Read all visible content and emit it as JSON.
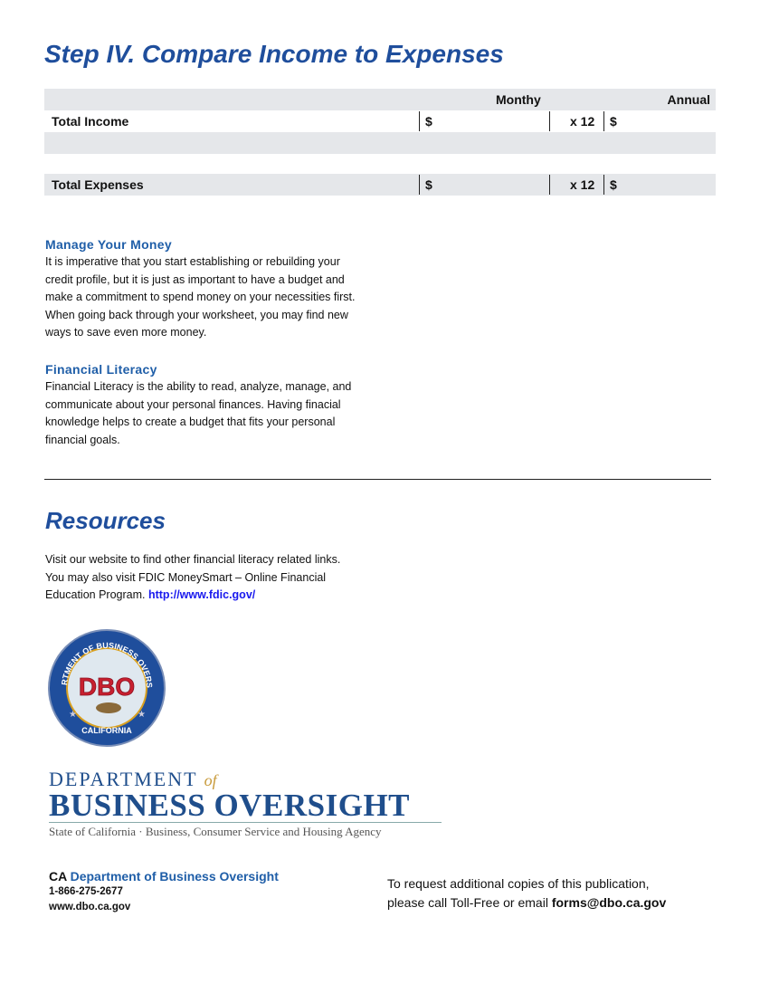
{
  "title": "Step IV. Compare Income to Expenses",
  "table": {
    "col_monthly": "Monthy",
    "col_annual": "Annual",
    "rows": [
      {
        "label": "Total Income",
        "currency": "$",
        "multiplier": "x 12",
        "annual_currency": "$"
      },
      {
        "label": "Total Expenses",
        "currency": "$",
        "multiplier": "x 12",
        "annual_currency": "$"
      }
    ]
  },
  "manage": {
    "heading": "Manage Your Money",
    "body": "It is imperative that you start establishing or rebuilding your credit profile, but it is just as important to have a budget and make a commitment to spend money on your necessities first. When going back through your worksheet, you may find new ways to save even more money."
  },
  "literacy": {
    "heading": "Financial Literacy",
    "body": "Financial Literacy is the ability to read, analyze, manage, and communicate about your personal finances. Having finacial knowledge helps to create a budget that fits your personal financial goals."
  },
  "resources": {
    "heading": "Resources",
    "body": "Visit our website to find other financial literacy related links. You may also visit FDIC MoneySmart – Online Financial Education Program.",
    "link": "http://www.fdic.gov/"
  },
  "seal": {
    "top_text": "DEPARTMENT OF BUSINESS OVERSIGHT",
    "bottom_text": "CALIFORNIA",
    "center": "DBO"
  },
  "logo": {
    "line1": "DEPARTMENT",
    "of": "of",
    "line2": "BUSINESS OVERSIGHT",
    "line3": "State of California · Business, Consumer Service and Housing Agency"
  },
  "footer": {
    "ca": "CA",
    "dept": "Department of Business Oversight",
    "phone": "1-866-275-2677",
    "web": "www.dbo.ca.gov",
    "request_line1": "To request additional copies of this publication,",
    "request_line2": "please call Toll-Free or email",
    "email": "forms@dbo.ca.gov"
  },
  "colors": {
    "brand_blue": "#1f4e9c",
    "table_gray": "#e5e7ea",
    "seal_red": "#c8202f"
  }
}
